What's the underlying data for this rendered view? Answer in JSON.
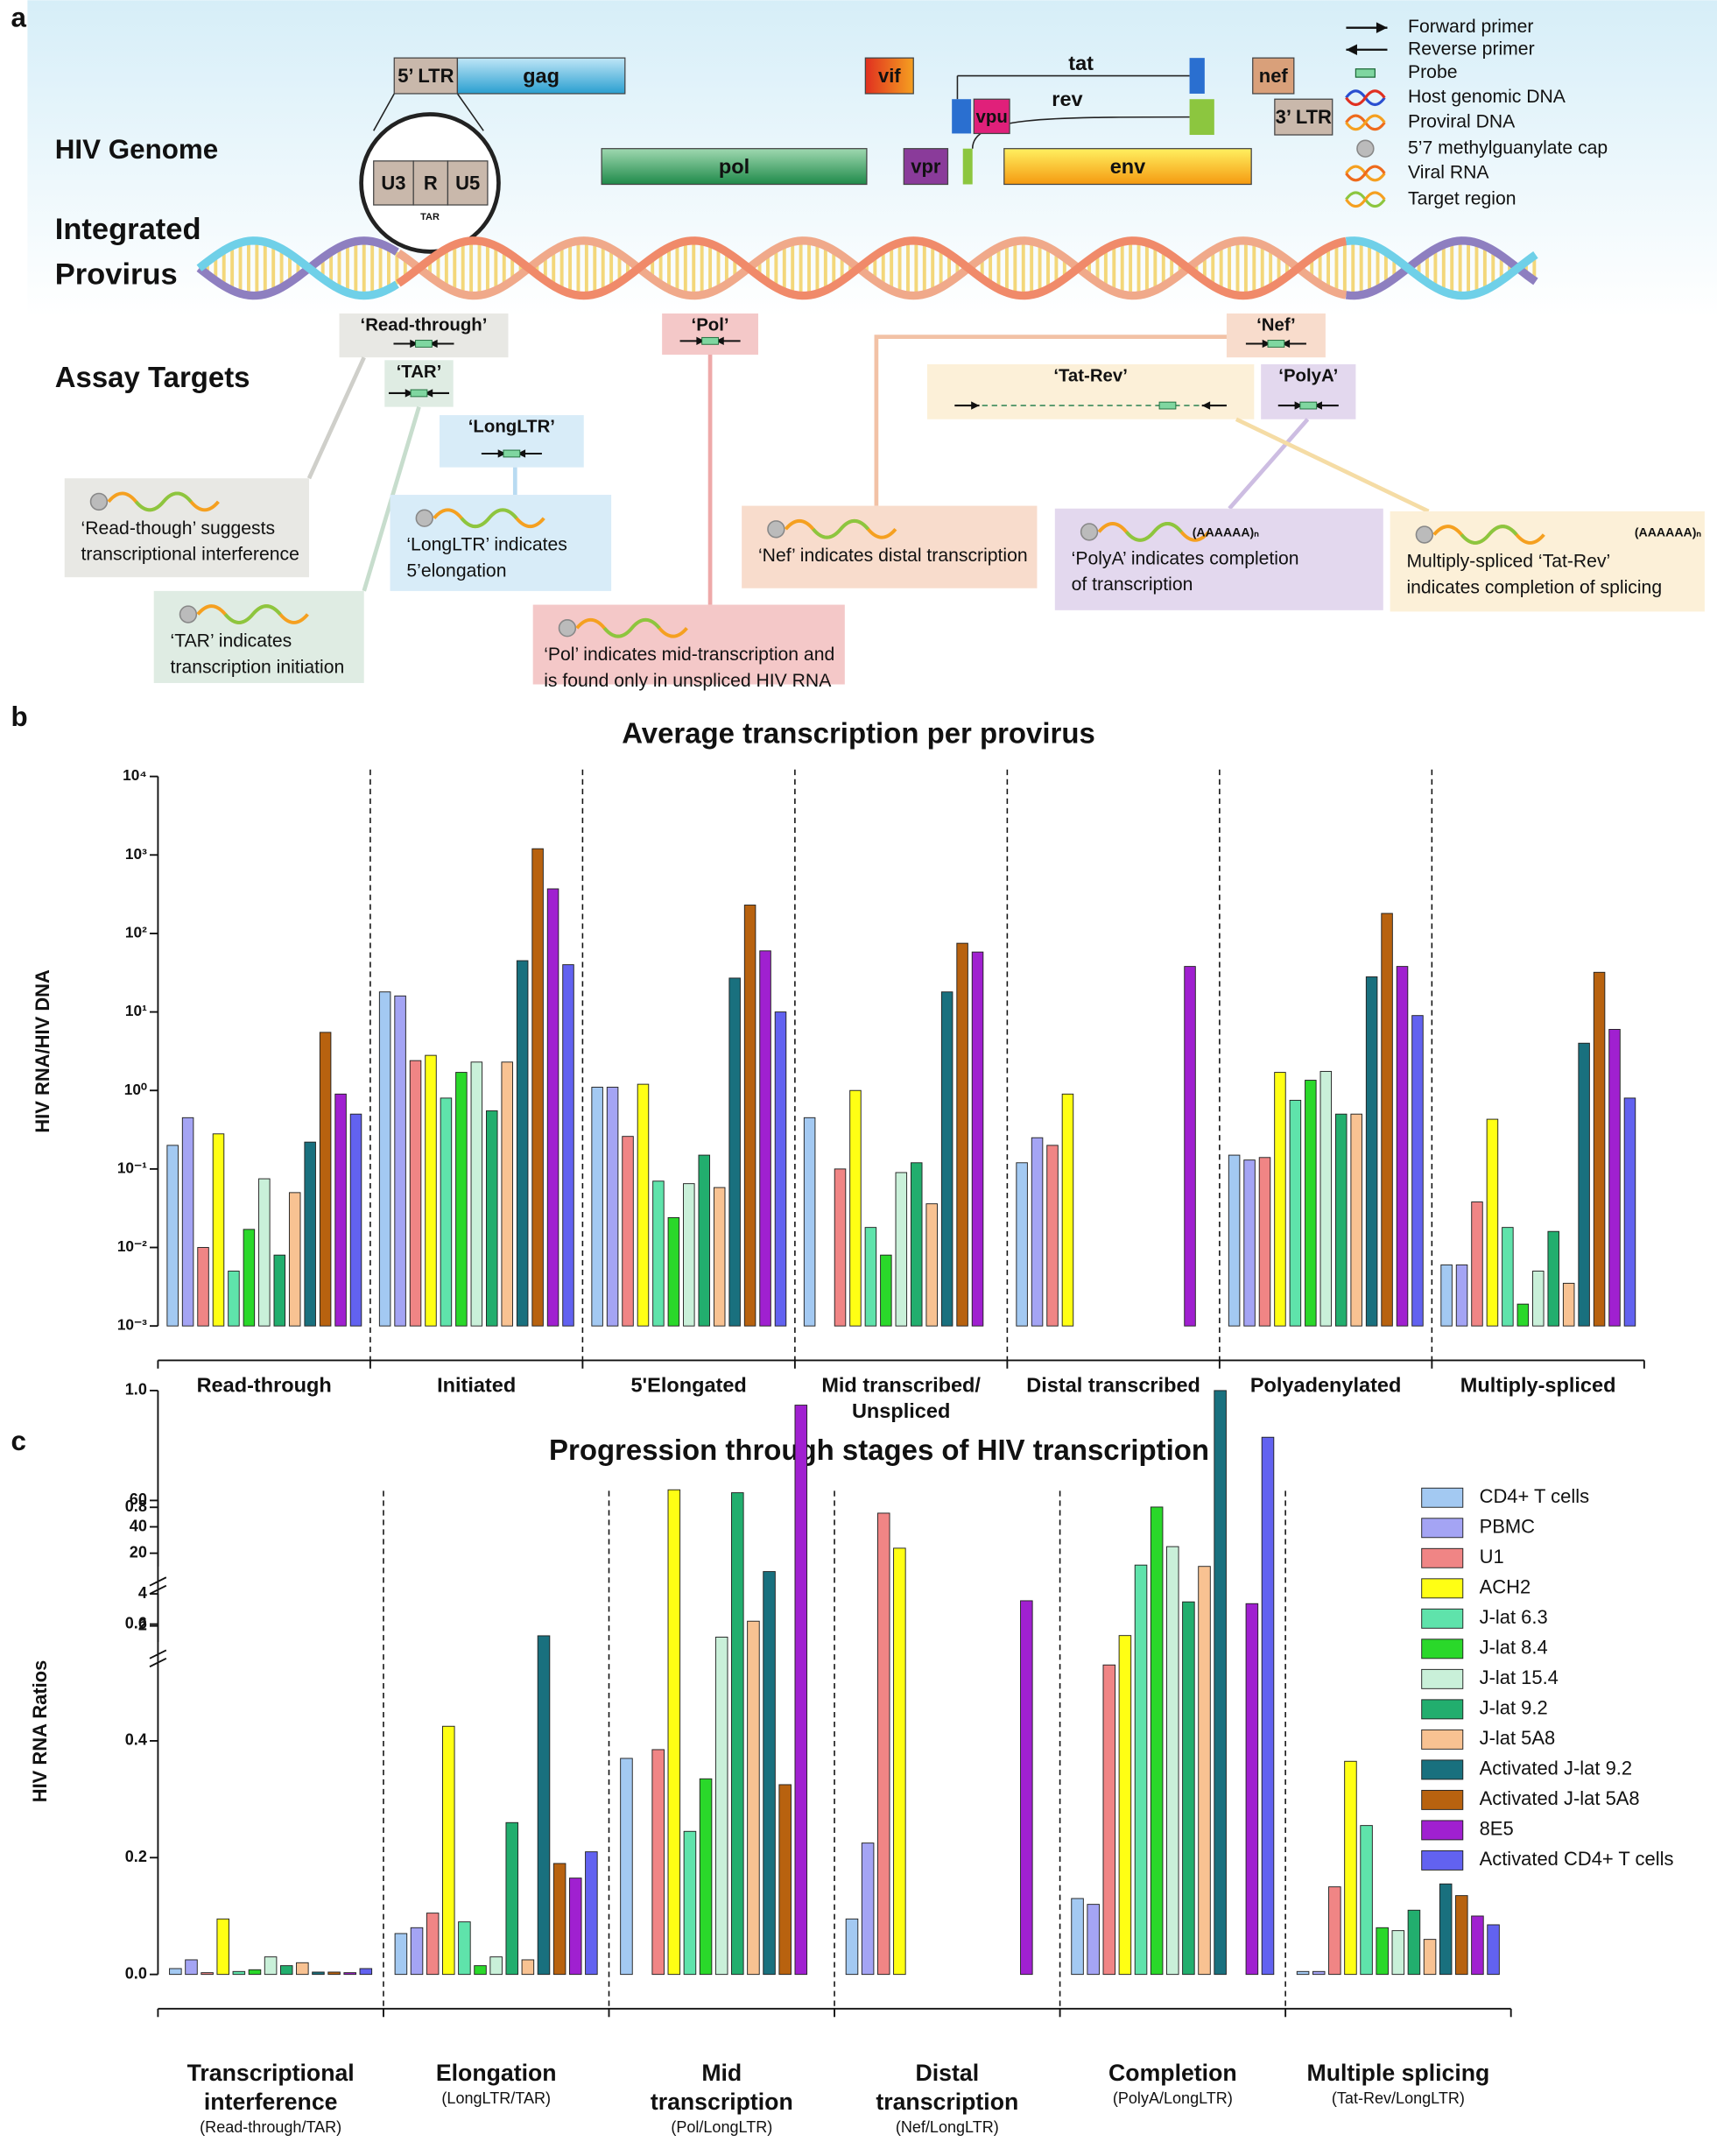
{
  "panel_labels": [
    "a",
    "b",
    "c"
  ],
  "diagram": {
    "genome_label": "HIV Genome",
    "provirus_label": [
      "Integrated",
      "Provirus"
    ],
    "assay_label": "Assay Targets",
    "genes": [
      "5’ LTR",
      "gag",
      "U3",
      "R",
      "U5",
      "TAR",
      "vif",
      "tat",
      "vpu",
      "rev",
      "nef",
      "3’ LTR",
      "pol",
      "vpr",
      "env"
    ],
    "legend": [
      "Forward primer",
      "Reverse primer",
      "Probe",
      "Host genomic DNA",
      "Proviral DNA",
      "5’7 methylguanylate cap",
      "Viral RNA",
      "Target region"
    ],
    "targets": [
      "‘Read-through’",
      "‘TAR’",
      "‘LongLTR’",
      "‘Pol’",
      "‘Nef’",
      "‘Tat-Rev’",
      "‘PolyA’"
    ],
    "captions": [
      [
        "‘Read-though’ suggests",
        "transcriptional interference"
      ],
      [
        "‘TAR’ indicates",
        "transcription initiation"
      ],
      [
        "‘LongLTR’ indicates",
        "5’elongation"
      ],
      [
        "‘Pol’ indicates mid-transcription and",
        "is found only in unspliced HIV RNA"
      ],
      [
        "‘Nef’ indicates distal transcription"
      ],
      [
        "‘PolyA’ indicates completion",
        "of transcription"
      ],
      [
        "Multiply-spliced ‘Tat-Rev’",
        "indicates completion of splicing"
      ]
    ],
    "poly_a_tail": "(AAAAAA)ₙ"
  },
  "chart_data": [
    {
      "type": "bar",
      "title": "Average transcription per provirus",
      "y_label": "HIV RNA/HIV DNA",
      "log_scale": true,
      "categories": [
        [
          "Read-through"
        ],
        [
          "Initiated"
        ],
        [
          "5'Elongated"
        ],
        [
          "Mid transcribed/",
          "Unspliced"
        ],
        [
          "Distal transcribed"
        ],
        [
          "Polyadenylated"
        ],
        [
          "Multiply-spliced"
        ]
      ],
      "ylim": [
        0.001,
        10000
      ],
      "yticks": [
        {
          "value": 0.001,
          "label": "10⁻³"
        },
        {
          "value": 0.01,
          "label": "10⁻²"
        },
        {
          "value": 0.1,
          "label": "10⁻¹"
        },
        {
          "value": 1,
          "label": "10⁰"
        },
        {
          "value": 10,
          "label": "10¹"
        },
        {
          "value": 100,
          "label": "10²"
        },
        {
          "value": 1000,
          "label": "10³"
        },
        {
          "value": 10000,
          "label": "10⁴"
        }
      ],
      "series": [
        {
          "color": "#a3c9f2",
          "values": [
            0.2,
            18,
            1.1,
            0.45,
            0.12,
            0.15,
            0.006
          ]
        },
        {
          "color": "#a4a4f4",
          "values": [
            0.45,
            16,
            1.1,
            null,
            0.25,
            0.13,
            0.006
          ]
        },
        {
          "color": "#f08585",
          "values": [
            0.01,
            2.4,
            0.26,
            0.1,
            0.2,
            0.14,
            0.038
          ]
        },
        {
          "color": "#ffff14",
          "values": [
            0.28,
            2.8,
            1.2,
            1.0,
            0.9,
            1.7,
            0.43
          ]
        },
        {
          "color": "#5fe3ab",
          "values": [
            0.005,
            0.8,
            0.07,
            0.018,
            null,
            0.75,
            0.018
          ]
        },
        {
          "color": "#2ad82a",
          "values": [
            0.017,
            1.7,
            0.024,
            0.008,
            null,
            1.35,
            0.0019
          ]
        },
        {
          "color": "#c9f0d9",
          "values": [
            0.075,
            2.3,
            0.065,
            0.09,
            null,
            1.75,
            0.005
          ]
        },
        {
          "color": "#22ae6e",
          "values": [
            0.008,
            0.55,
            0.15,
            0.12,
            null,
            0.5,
            0.016
          ]
        },
        {
          "color": "#f8c292",
          "values": [
            0.05,
            2.3,
            0.058,
            0.036,
            null,
            0.5,
            0.0035
          ]
        },
        {
          "color": "#19707e",
          "values": [
            0.22,
            45,
            27,
            18,
            null,
            28,
            4.0
          ]
        },
        {
          "color": "#b8620f",
          "values": [
            5.5,
            1200,
            230,
            75,
            null,
            180,
            32
          ]
        },
        {
          "color": "#a020d0",
          "values": [
            0.9,
            370,
            60,
            58,
            38,
            38,
            6
          ]
        },
        {
          "color": "#6262f0",
          "values": [
            0.5,
            40,
            10,
            null,
            null,
            9,
            0.8
          ]
        }
      ]
    },
    {
      "type": "bar",
      "title": "Progression through stages of HIV transcription",
      "y_label": "HIV RNA Ratios",
      "categories": [
        [
          "Transcriptional",
          "interference"
        ],
        [
          "Elongation"
        ],
        [
          "Mid",
          "transcription"
        ],
        [
          "Distal",
          "transcription"
        ],
        [
          "Completion"
        ],
        [
          "Multiple splicing"
        ]
      ],
      "category_subtitles": [
        "(Read-through/TAR)",
        "(LongLTR/TAR)",
        "(Pol/LongLTR)",
        "(Nef/LongLTR)",
        "(PolyA/LongLTR)",
        "(Tat-Rev/LongLTR)"
      ],
      "ylim": [
        0,
        60
      ],
      "y_segments": [
        [
          0,
          1
        ],
        [
          1,
          4
        ],
        [
          10,
          60
        ]
      ],
      "yticks": [
        {
          "value": 0,
          "label": "0.0"
        },
        0.2,
        0.4,
        0.6,
        0.8,
        {
          "value": 1,
          "label": "1.0"
        },
        2,
        4,
        20,
        40,
        60
      ],
      "legend_position": "upper right",
      "series": [
        {
          "name": "CD4+ T cells",
          "color": "#a3c9f2",
          "values": [
            0.01,
            0.07,
            0.37,
            0.095,
            0.13,
            0.005
          ]
        },
        {
          "name": "PBMC",
          "color": "#a4a4f4",
          "values": [
            0.025,
            0.08,
            null,
            0.225,
            0.12,
            0.005
          ]
        },
        {
          "name": "U1",
          "color": "#f08585",
          "values": [
            0.003,
            0.105,
            0.385,
            0.79,
            0.53,
            0.15
          ]
        },
        {
          "name": "ACH2",
          "color": "#ffff14",
          "values": [
            0.095,
            0.425,
            0.83,
            0.73,
            1.4,
            0.365
          ]
        },
        {
          "name": "J-lat 6.3",
          "color": "#5fe3ab",
          "values": [
            0.005,
            0.09,
            0.245,
            null,
            11,
            0.255
          ]
        },
        {
          "name": "J-lat 8.4",
          "color": "#2ad82a",
          "values": [
            0.008,
            0.015,
            0.335,
            null,
            55,
            0.08
          ]
        },
        {
          "name": "J-lat 15.4",
          "color": "#c9f0d9",
          "values": [
            0.03,
            0.03,
            1.3,
            null,
            25,
            0.075
          ]
        },
        {
          "name": "J-lat 9.2",
          "color": "#22ae6e",
          "values": [
            0.015,
            0.26,
            0.825,
            null,
            3.5,
            0.11
          ]
        },
        {
          "name": "J-lat 5A8",
          "color": "#f8c292",
          "values": [
            0.02,
            0.025,
            0.605,
            null,
            10,
            0.06
          ]
        },
        {
          "name": "Activated J-lat 9.2",
          "color": "#19707e",
          "values": [
            0.004,
            0.58,
            0.69,
            null,
            1.0,
            0.155
          ]
        },
        {
          "name": "Activated J-lat 5A8",
          "color": "#b8620f",
          "values": [
            0.004,
            0.19,
            0.325,
            null,
            null,
            0.135
          ]
        },
        {
          "name": "8E5",
          "color": "#a020d0",
          "values": [
            0.003,
            0.165,
            0.975,
            0.64,
            0.635,
            0.1
          ]
        },
        {
          "name": "Activated CD4+ T cells",
          "color": "#6262f0",
          "values": [
            0.01,
            0.21,
            null,
            null,
            0.92,
            0.085
          ]
        }
      ]
    }
  ]
}
